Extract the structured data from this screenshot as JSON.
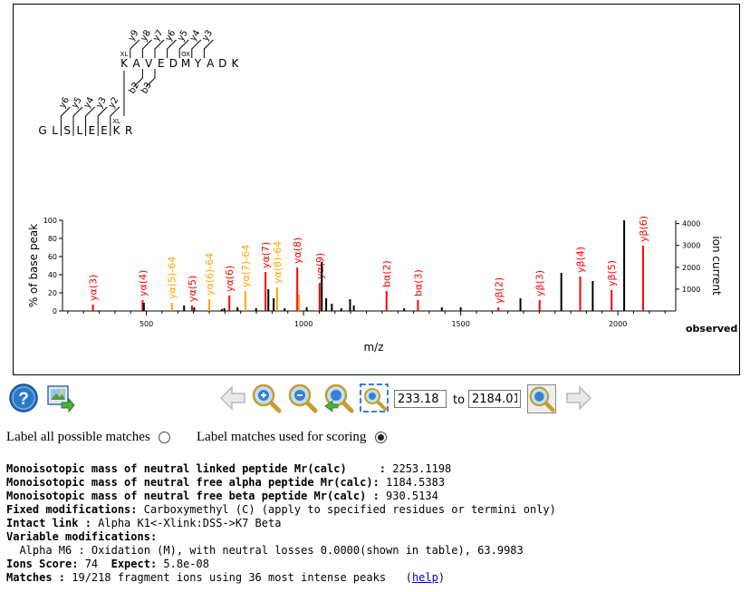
{
  "peptides": {
    "alpha": {
      "residues": [
        "K",
        "A",
        "V",
        "E",
        "D",
        "M",
        "Y",
        "A",
        "D",
        "K"
      ],
      "xl_label": "XL",
      "ox_label": "OX",
      "y_ions": [
        "y9",
        "y8",
        "y7",
        "y6",
        "y5",
        "y4",
        "y3"
      ],
      "b_ions": [
        "b2",
        "b3"
      ]
    },
    "beta": {
      "residues": [
        "G",
        "L",
        "S",
        "L",
        "E",
        "E",
        "K",
        "R"
      ],
      "xl_label": "XL",
      "y_ions": [
        "y6",
        "y5",
        "y4",
        "y3",
        "y2"
      ]
    }
  },
  "chart_data": {
    "type": "bar",
    "xlabel": "m/z",
    "ylabel_left": "% of base peak",
    "ylabel_right": "ion current",
    "observed_label": "observed",
    "xlim": [
      233.18,
      2184.01
    ],
    "ylim_left": [
      0,
      100
    ],
    "ylim_right": [
      0,
      4150
    ],
    "x_ticks": [
      500,
      1000,
      1500,
      2000
    ],
    "y_ticks_left": [
      0,
      20,
      40,
      60,
      80,
      100
    ],
    "y_ticks_right": [
      1000,
      2000,
      3000,
      4000
    ],
    "colors": {
      "unmatched": "#000000",
      "matched": "#ff0000",
      "neutral_loss": "#ffa500"
    },
    "peaks": [
      {
        "mz": 330,
        "intensity": 7,
        "type": "matched",
        "label": "yα(3)"
      },
      {
        "mz": 488,
        "intensity": 12,
        "type": "matched",
        "label": "yα(4)"
      },
      {
        "mz": 492,
        "intensity": 9,
        "type": "unmatched",
        "label": ""
      },
      {
        "mz": 581,
        "intensity": 9,
        "type": "neutral_loss",
        "label": "yα(5)-64"
      },
      {
        "mz": 620,
        "intensity": 6,
        "type": "unmatched",
        "label": ""
      },
      {
        "mz": 645,
        "intensity": 6,
        "type": "matched",
        "label": "yα(5)"
      },
      {
        "mz": 652,
        "intensity": 4,
        "type": "unmatched",
        "label": ""
      },
      {
        "mz": 700,
        "intensity": 13,
        "type": "neutral_loss",
        "label": "yα(6)-64"
      },
      {
        "mz": 740,
        "intensity": 2,
        "type": "unmatched",
        "label": ""
      },
      {
        "mz": 748,
        "intensity": 3,
        "type": "unmatched",
        "label": ""
      },
      {
        "mz": 764,
        "intensity": 17,
        "type": "matched",
        "label": "yα(6)"
      },
      {
        "mz": 790,
        "intensity": 4,
        "type": "unmatched",
        "label": ""
      },
      {
        "mz": 815,
        "intensity": 22,
        "type": "neutral_loss",
        "label": "yα(7)-64"
      },
      {
        "mz": 849,
        "intensity": 3,
        "type": "unmatched",
        "label": ""
      },
      {
        "mz": 879,
        "intensity": 43,
        "type": "matched",
        "label": "yα(7)"
      },
      {
        "mz": 888,
        "intensity": 24,
        "type": "unmatched",
        "label": ""
      },
      {
        "mz": 905,
        "intensity": 14,
        "type": "unmatched",
        "label": ""
      },
      {
        "mz": 916,
        "intensity": 26,
        "type": "neutral_loss",
        "label": "yα(8)-64"
      },
      {
        "mz": 940,
        "intensity": 3,
        "type": "unmatched",
        "label": ""
      },
      {
        "mz": 980,
        "intensity": 48,
        "type": "matched",
        "label": "yα(8)"
      },
      {
        "mz": 985,
        "intensity": 18,
        "type": "neutral_loss",
        "label": ""
      },
      {
        "mz": 1010,
        "intensity": 4,
        "type": "unmatched",
        "label": ""
      },
      {
        "mz": 1051,
        "intensity": 31,
        "type": "matched",
        "label": "yα(9)"
      },
      {
        "mz": 1058,
        "intensity": 54,
        "type": "unmatched",
        "label": ""
      },
      {
        "mz": 1072,
        "intensity": 14,
        "type": "unmatched",
        "label": ""
      },
      {
        "mz": 1090,
        "intensity": 8,
        "type": "unmatched",
        "label": ""
      },
      {
        "mz": 1120,
        "intensity": 3,
        "type": "unmatched",
        "label": ""
      },
      {
        "mz": 1148,
        "intensity": 13,
        "type": "unmatched",
        "label": ""
      },
      {
        "mz": 1160,
        "intensity": 6,
        "type": "unmatched",
        "label": ""
      },
      {
        "mz": 1264,
        "intensity": 22,
        "type": "matched",
        "label": "bα(2)"
      },
      {
        "mz": 1320,
        "intensity": 3,
        "type": "unmatched",
        "label": ""
      },
      {
        "mz": 1364,
        "intensity": 12,
        "type": "matched",
        "label": "bα(3)"
      },
      {
        "mz": 1440,
        "intensity": 4,
        "type": "unmatched",
        "label": ""
      },
      {
        "mz": 1500,
        "intensity": 4,
        "type": "unmatched",
        "label": ""
      },
      {
        "mz": 1620,
        "intensity": 4,
        "type": "matched",
        "label": "yβ(2)"
      },
      {
        "mz": 1690,
        "intensity": 14,
        "type": "unmatched",
        "label": ""
      },
      {
        "mz": 1751,
        "intensity": 12,
        "type": "matched",
        "label": "yβ(3)"
      },
      {
        "mz": 1820,
        "intensity": 42,
        "type": "unmatched",
        "label": ""
      },
      {
        "mz": 1880,
        "intensity": 38,
        "type": "matched",
        "label": "yβ(4)"
      },
      {
        "mz": 1920,
        "intensity": 33,
        "type": "unmatched",
        "label": ""
      },
      {
        "mz": 1980,
        "intensity": 23,
        "type": "matched",
        "label": "yβ(5)"
      },
      {
        "mz": 2020,
        "intensity": 100,
        "type": "unmatched",
        "label": ""
      },
      {
        "mz": 2080,
        "intensity": 72,
        "type": "matched",
        "label": "yβ(6)"
      }
    ]
  },
  "toolbar": {
    "range_from": "233.18",
    "range_to": "2184.01",
    "to_label": "to"
  },
  "radios": {
    "all_matches_label": "Label all possible matches",
    "scoring_matches_label": "Label matches used for scoring",
    "selected": "scoring"
  },
  "info": {
    "line1_label": "Monoisotopic mass of neutral linked peptide Mr(calc)     :",
    "line1_value": " 2253.1198",
    "line2_label": "Monoisotopic mass of neutral free alpha peptide Mr(calc):",
    "line2_value": " 1184.5383",
    "line3_label": "Monoisotopic mass of neutral free beta peptide Mr(calc) :",
    "line3_value": " 930.5134",
    "fixed_label": "Fixed modifications:",
    "fixed_value": " Carboxymethyl (C) (apply to specified residues or termini only)",
    "intact_label": "Intact link :",
    "intact_value": " Alpha K1<-Xlink:DSS->K7 Beta",
    "variable_label": "Variable modifications:",
    "variable_value": "  Alpha M6 : Oxidation (M), with neutral losses 0.0000(shown in table), 63.9983",
    "score_label": "Ions Score:",
    "score_value": " 74  ",
    "expect_label": "Expect:",
    "expect_value": " 5.8e-08",
    "matches_label": "Matches :",
    "matches_value": " 19/218 fragment ions using 36 most intense peaks   (",
    "help_link": "help",
    "close_paren": ")"
  }
}
